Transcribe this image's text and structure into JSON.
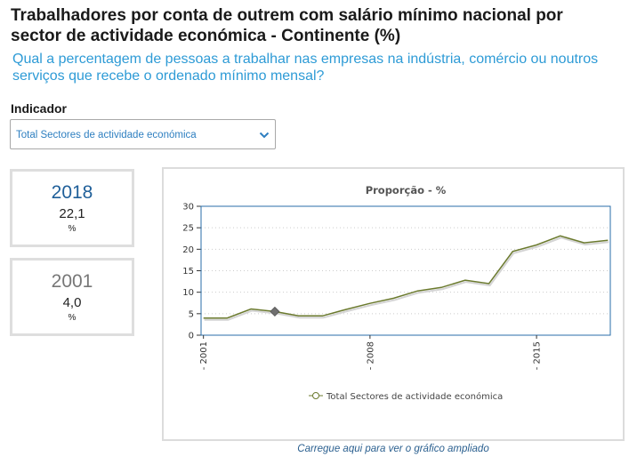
{
  "header": {
    "title": "Trabalhadores por conta de outrem com salário mínimo nacional por sector de actividade económica - Continente (%)",
    "subtitle": "Qual a percentagem de pessoas a trabalhar nas empresas na indústria, comércio ou noutros serviços que recebe o ordenado mínimo mensal?"
  },
  "indicator": {
    "label": "Indicador",
    "selected": "Total Sectores de actividade económica"
  },
  "stats": [
    {
      "year": "2018",
      "value": "22,1",
      "unit": "%",
      "color": "#1f5f99"
    },
    {
      "year": "2001",
      "value": "4,0",
      "unit": "%",
      "color": "#777777"
    }
  ],
  "footer": {
    "link": "Carregue aqui para ver o gráfico ampliado"
  },
  "colors": {
    "accent": "#2e9bd6",
    "series": "#6b7a2e",
    "marker": "#707070"
  },
  "chart_data": {
    "type": "line",
    "title": "Proporção - %",
    "xlabel": "",
    "ylabel": "",
    "ylim": [
      0,
      30
    ],
    "yticks": [
      "0",
      "5",
      "10",
      "15",
      "20",
      "25",
      "30"
    ],
    "xticks": [
      "2001",
      "2008",
      "2015"
    ],
    "grid": "horizontal dotted",
    "legend": "bottom",
    "series": [
      {
        "name": "Total Sectores de actividade económica",
        "x": [
          2001,
          2002,
          2003,
          2004,
          2005,
          2006,
          2007,
          2008,
          2009,
          2010,
          2011,
          2012,
          2013,
          2014,
          2015,
          2016,
          2017,
          2018
        ],
        "values": [
          4.0,
          4.0,
          6.1,
          5.5,
          4.5,
          4.5,
          6.0,
          7.4,
          8.6,
          10.3,
          11.1,
          12.8,
          12.0,
          19.5,
          21.0,
          23.1,
          21.5,
          22.1
        ]
      }
    ],
    "highlight_x": 2004
  }
}
